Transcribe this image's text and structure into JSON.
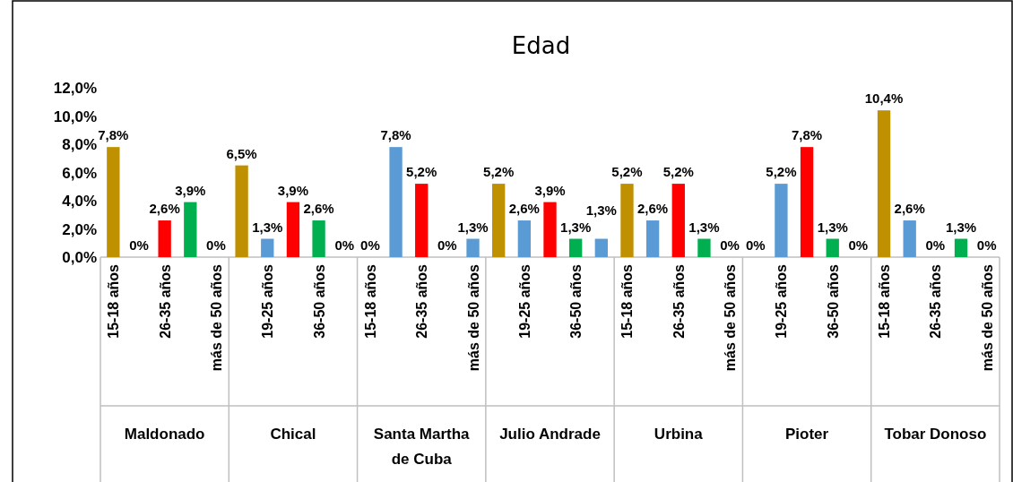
{
  "chart_data": {
    "type": "bar",
    "title": "Edad",
    "categories": [
      "15-18 años",
      null,
      "26-35 años",
      null,
      "más de 50 años",
      null,
      "19-25 años",
      null,
      "36-50 años",
      null,
      "15-18 años",
      null,
      "26-35 años",
      null,
      "más de 50 años",
      null,
      "19-25 años",
      null,
      "36-50 años",
      null,
      "15-18 años",
      null,
      "26-35 años",
      null,
      "más de 50 años",
      null,
      "19-25 años",
      null,
      "36-50 años",
      null,
      "15-18 años",
      null,
      "26-35 años",
      null,
      "más de 50 años"
    ],
    "values": [
      7.8,
      0,
      2.6,
      3.9,
      0,
      6.5,
      1.3,
      3.9,
      2.6,
      0,
      0,
      7.8,
      5.2,
      0,
      1.3,
      5.2,
      2.6,
      3.9,
      1.3,
      1.3,
      5.2,
      2.6,
      5.2,
      1.3,
      0,
      0,
      5.2,
      7.8,
      1.3,
      0,
      10.4,
      2.6,
      0,
      1.3,
      0
    ],
    "value_labels": [
      "7,8%",
      "0%",
      "2,6%",
      "3,9%",
      "0%",
      "6,5%",
      "1,3%",
      "3,9%",
      "2,6%",
      "0%",
      "0%",
      "7,8%",
      "5,2%",
      "0%",
      "1,3%",
      "5,2%",
      "2,6%",
      "3,9%",
      "1,3%",
      "1,3%",
      "5,2%",
      "2,6%",
      "5,2%",
      "1,3%",
      "0%",
      "0%",
      "5,2%",
      "7,8%",
      "1,3%",
      "0%",
      "10,4%",
      "2,6%",
      "0%",
      "1,3%",
      "0%"
    ],
    "colors": [
      "#bf9000",
      "#5b9bd5",
      "#ff0000",
      "#00b050",
      "#5b9bd5",
      "#bf9000",
      "#5b9bd5",
      "#ff0000",
      "#00b050",
      "#5b9bd5",
      "#bf9000",
      "#5b9bd5",
      "#ff0000",
      "#00b050",
      "#5b9bd5",
      "#bf9000",
      "#5b9bd5",
      "#ff0000",
      "#00b050",
      "#5b9bd5",
      "#bf9000",
      "#5b9bd5",
      "#ff0000",
      "#00b050",
      "#5b9bd5",
      "#bf9000",
      "#5b9bd5",
      "#ff0000",
      "#00b050",
      "#5b9bd5",
      "#bf9000",
      "#5b9bd5",
      "#ff0000",
      "#00b050",
      "#5b9bd5"
    ],
    "ylim": [
      0,
      12
    ],
    "yticks": [
      {
        "value": 0,
        "label": "0,0%"
      },
      {
        "value": 2,
        "label": "2,0%"
      },
      {
        "value": 4,
        "label": "4,0%"
      },
      {
        "value": 6,
        "label": "6,0%"
      },
      {
        "value": 8,
        "label": "8,0%"
      },
      {
        "value": 10,
        "label": "10,0%"
      },
      {
        "value": 12,
        "label": "12,0%"
      }
    ],
    "annotations": [
      "Maldonado",
      "Chical",
      "Santa Martha de Cuba",
      "Julio Andrade",
      "Urbina",
      "Pioter",
      "Tobar Donoso"
    ]
  }
}
